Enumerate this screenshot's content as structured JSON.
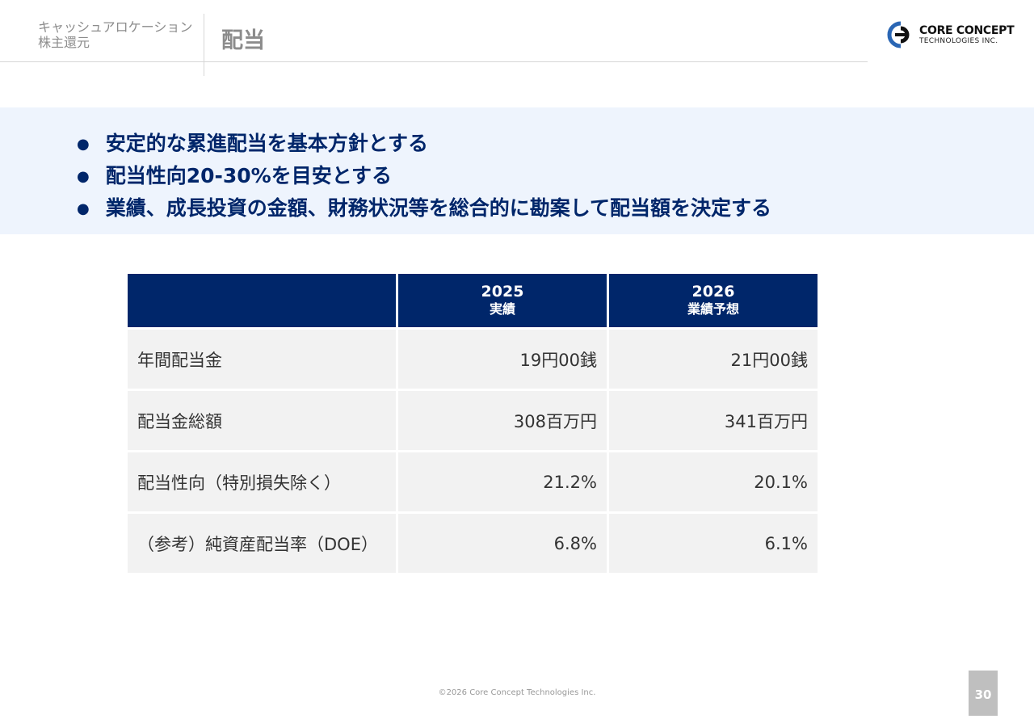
{
  "header": {
    "section_line1": "キャッシュアロケーション",
    "section_line2": "株主還元",
    "title": "配当"
  },
  "logo": {
    "line1": "CORE CONCEPT",
    "line2": "TECHNOLOGIES INC."
  },
  "bullets": [
    "安定的な累進配当を基本方針とする",
    "配当性向20-30%を目安とする",
    "業績、成長投資の金額、財務状況等を総合的に勘案して配当額を決定する"
  ],
  "table": {
    "headers": [
      {
        "year": "",
        "sub": ""
      },
      {
        "year": "2025",
        "sub": "実績"
      },
      {
        "year": "2026",
        "sub": "業績予想"
      }
    ],
    "rows": [
      [
        "年間配当金",
        "19円00銭",
        "21円00銭"
      ],
      [
        "配当金総額",
        "308百万円",
        "341百万円"
      ],
      [
        "配当性向（特別損失除く）",
        "21.2%",
        "20.1%"
      ],
      [
        "（参考）純資産配当率（DOE）",
        "6.8%",
        "6.1%"
      ]
    ]
  },
  "footer": {
    "copyright": "©2026 Core Concept Technologies Inc.",
    "page": "30"
  }
}
